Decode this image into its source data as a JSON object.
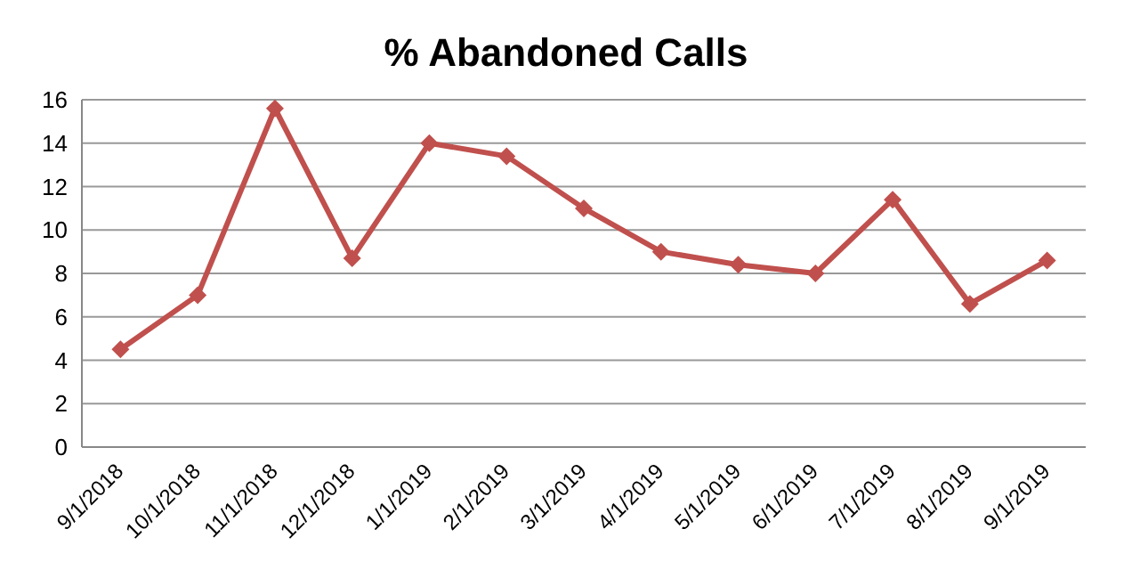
{
  "chart_data": {
    "type": "line",
    "title": "% Abandoned Calls",
    "categories": [
      "9/1/2018",
      "10/1/2018",
      "11/1/2018",
      "12/1/2018",
      "1/1/2019",
      "2/1/2019",
      "3/1/2019",
      "4/1/2019",
      "5/1/2019",
      "6/1/2019",
      "7/1/2019",
      "8/1/2019",
      "9/1/2019"
    ],
    "series": [
      {
        "color": "#c0504d",
        "values": [
          4.5,
          7.0,
          15.6,
          8.7,
          14.0,
          13.4,
          11.0,
          9.0,
          8.4,
          8.0,
          11.4,
          6.6,
          8.6
        ]
      }
    ],
    "ylim": [
      0,
      16
    ],
    "yticks": [
      0,
      2,
      4,
      6,
      8,
      10,
      12,
      14,
      16
    ],
    "grid": "y",
    "marker": "diamond",
    "line_style": "solid",
    "legend": false
  }
}
